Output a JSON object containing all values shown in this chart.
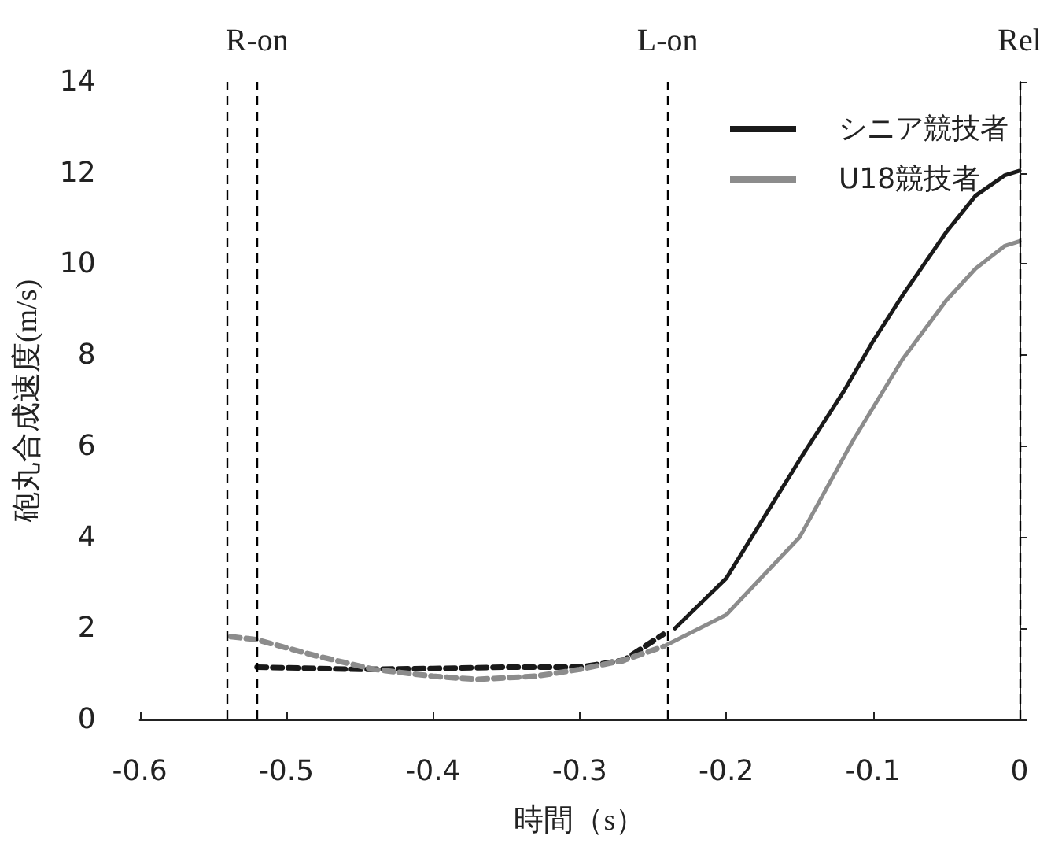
{
  "chart_data": {
    "type": "line",
    "xlabel": "時間（s）",
    "ylabel": "砲丸合成速度(m/s)",
    "xlim": [
      -0.6,
      0
    ],
    "xticks": [
      -0.6,
      -0.5,
      -0.4,
      -0.3,
      -0.2,
      -0.1,
      0
    ],
    "ylim": [
      0,
      14
    ],
    "yticks": [
      0,
      2,
      4,
      6,
      8,
      10,
      12,
      14
    ],
    "grid": false,
    "legend": "top right",
    "marker": "none",
    "ref_lines": [
      {
        "axis": "x",
        "value": -0.54,
        "label": null,
        "line_style": "dashed",
        "color": "#000000"
      },
      {
        "axis": "x",
        "value": -0.52,
        "label": "R-on",
        "line_style": "dashed",
        "color": "#000000"
      },
      {
        "axis": "x",
        "value": -0.24,
        "label": "L-on",
        "line_style": "dashed",
        "color": "#000000"
      },
      {
        "axis": "x",
        "value": 0,
        "label": "Rel",
        "line_style": "dashed",
        "color": "#000000"
      }
    ],
    "series": [
      {
        "name": "シニア競技者",
        "color": "#1a1a1a",
        "line_style": "solid",
        "x": [
          -0.235,
          -0.2,
          -0.15,
          -0.12,
          -0.1,
          -0.08,
          -0.05,
          -0.03,
          -0.01,
          0
        ],
        "values": [
          2.0,
          3.1,
          5.7,
          7.2,
          8.3,
          9.3,
          10.7,
          11.5,
          11.95,
          12.05
        ]
      },
      {
        "name": "U18競技者",
        "color": "#8c8c8c",
        "line_style": "solid",
        "x": [
          -0.243,
          -0.2,
          -0.15,
          -0.114,
          -0.08,
          -0.05,
          -0.03,
          -0.01,
          0
        ],
        "values": [
          1.6,
          2.3,
          4.0,
          6.1,
          7.9,
          9.2,
          9.9,
          10.4,
          10.5
        ]
      },
      {
        "color": "#1a1a1a",
        "line_style": "dashed",
        "x": [
          -0.52,
          -0.45,
          -0.4,
          -0.35,
          -0.3,
          -0.27,
          -0.243
        ],
        "values": [
          1.15,
          1.1,
          1.12,
          1.15,
          1.15,
          1.3,
          1.87
        ]
      },
      {
        "color": "#8c8c8c",
        "line_style": "dashed",
        "x": [
          -0.538,
          -0.52,
          -0.48,
          -0.44,
          -0.4,
          -0.37,
          -0.33,
          -0.3,
          -0.27,
          -0.243
        ],
        "values": [
          1.82,
          1.75,
          1.4,
          1.1,
          0.95,
          0.88,
          0.95,
          1.1,
          1.3,
          1.6
        ]
      }
    ]
  }
}
